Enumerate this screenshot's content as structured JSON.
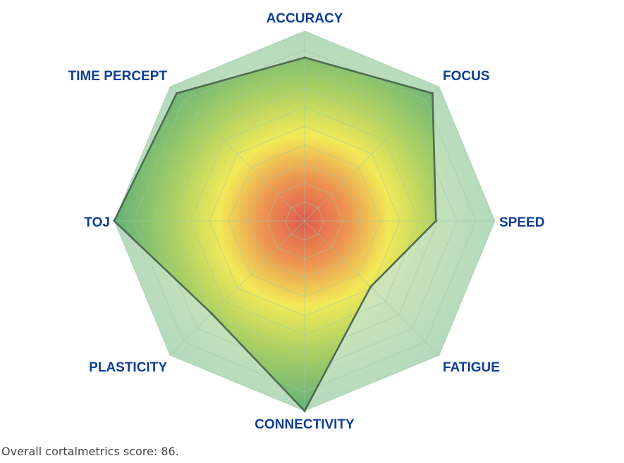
{
  "chart_data": {
    "type": "radar",
    "axes": [
      "ACCURACY",
      "FOCUS",
      "SPEED",
      "FATIGUE",
      "CONNECTIVITY",
      "PLASTICITY",
      "TOJ",
      "TIME PERCEPT"
    ],
    "values": [
      86,
      95,
      69,
      49,
      100,
      69,
      100,
      95
    ],
    "range": [
      0,
      100
    ],
    "rings": 10,
    "grid": true,
    "colors": {
      "outer_band": "#b8dcc2",
      "gradient_center": "#e05a4e",
      "gradient_mid": "#f2ea58",
      "gradient_outer": "#62b07a",
      "outline": "#4f6b50",
      "grid_line": "#9cc9a8",
      "label": "#0d3f93"
    }
  },
  "footer": {
    "score_text": "Overall cortalmetrics score: 86."
  }
}
